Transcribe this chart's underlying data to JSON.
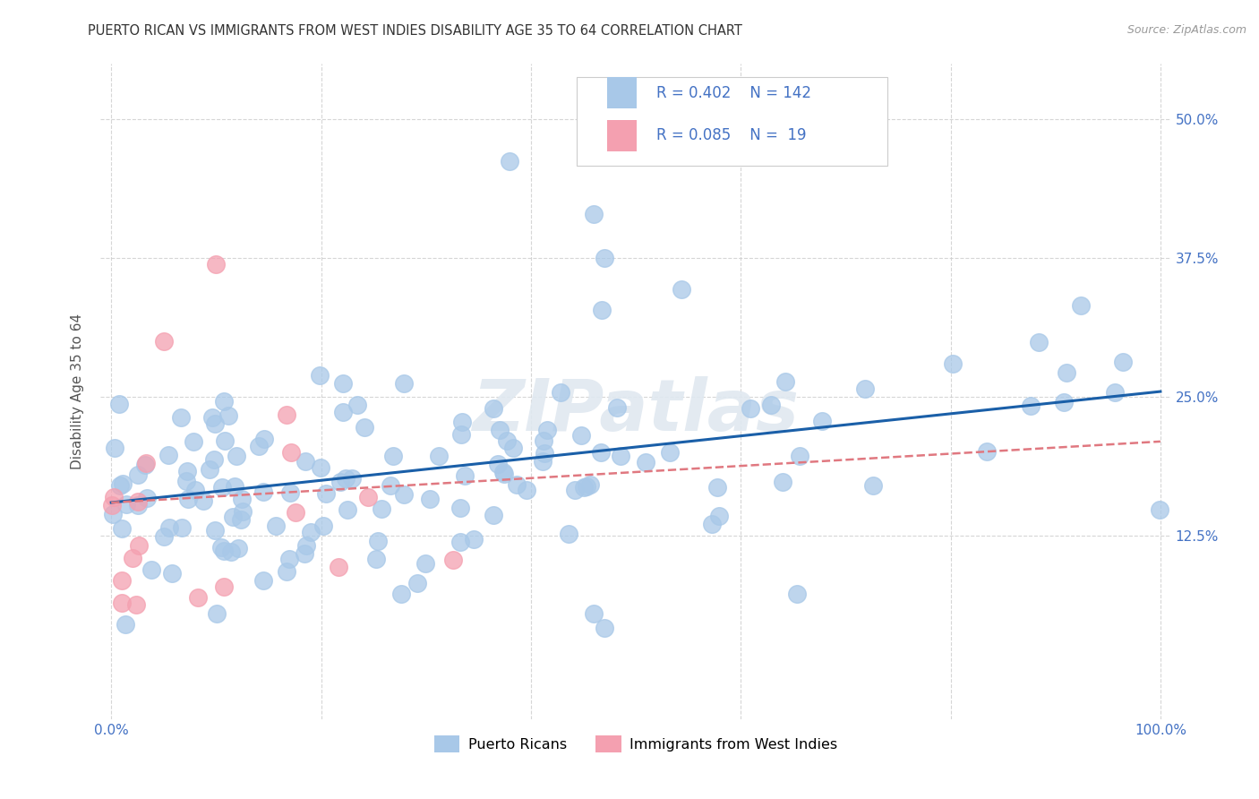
{
  "title": "PUERTO RICAN VS IMMIGRANTS FROM WEST INDIES DISABILITY AGE 35 TO 64 CORRELATION CHART",
  "source": "Source: ZipAtlas.com",
  "ylabel": "Disability Age 35 to 64",
  "xlim": [
    -0.01,
    1.01
  ],
  "ylim": [
    -0.04,
    0.55
  ],
  "ytick_positions": [
    0.125,
    0.25,
    0.375,
    0.5
  ],
  "yticklabels": [
    "12.5%",
    "25.0%",
    "37.5%",
    "50.0%"
  ],
  "background_color": "#ffffff",
  "grid_color": "#cccccc",
  "watermark": "ZIPatlas",
  "blue_color": "#a8c8e8",
  "pink_color": "#f4a0b0",
  "line_blue": "#1a5fa8",
  "line_pink": "#e07880",
  "tick_color_right": "#4472c4",
  "legend_text_color": "#333333",
  "title_fontsize": 10.5,
  "axis_label_fontsize": 11,
  "tick_fontsize": 11,
  "n_pr": 142,
  "n_wi": 19,
  "pr_slope": 0.1,
  "pr_intercept": 0.155,
  "wi_slope": 0.055,
  "wi_intercept": 0.155
}
